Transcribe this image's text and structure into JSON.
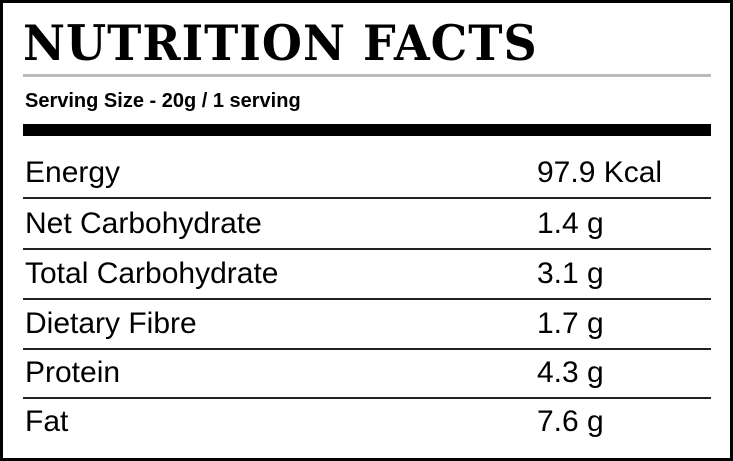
{
  "title": "NUTRITION FACTS",
  "serving": "Serving Size - 20g / 1 serving",
  "rows": [
    {
      "name": "Energy",
      "value": "97.9 Kcal"
    },
    {
      "name": "Net Carbohydrate",
      "value": "1.4 g"
    },
    {
      "name": "Total Carbohydrate",
      "value": "3.1 g"
    },
    {
      "name": "Dietary Fibre",
      "value": "1.7 g"
    },
    {
      "name": "Protein",
      "value": "4.3 g"
    },
    {
      "name": "Fat",
      "value": "7.6 g"
    }
  ]
}
